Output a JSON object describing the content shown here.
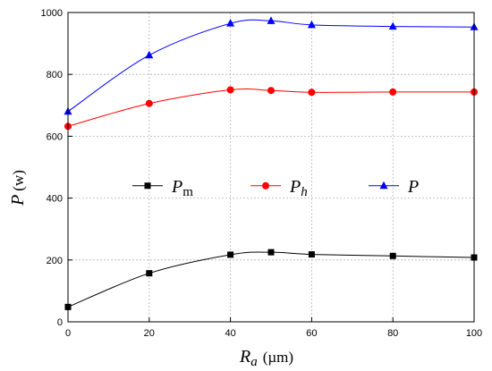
{
  "chart_data": {
    "type": "line",
    "x": [
      0,
      20,
      40,
      50,
      60,
      80,
      100
    ],
    "xlim": [
      0,
      100
    ],
    "ylim": [
      0,
      1000
    ],
    "xticks": [
      0,
      20,
      40,
      60,
      80,
      100
    ],
    "yticks": [
      0,
      200,
      400,
      600,
      800,
      1000
    ],
    "xlabel": {
      "main": "R",
      "sub": "a",
      "unit": "(µm)"
    },
    "ylabel": {
      "main": "P",
      "unit": "(w)"
    },
    "grid": true,
    "legend_position": "center",
    "series": [
      {
        "name": "P",
        "sub": "m",
        "color": "#000000",
        "marker": "square",
        "values": [
          48,
          157,
          217,
          225,
          218,
          213,
          208
        ]
      },
      {
        "name": "P",
        "sub": "h",
        "color": "#ff0000",
        "marker": "circle",
        "values": [
          632,
          706,
          750,
          748,
          742,
          743,
          743
        ]
      },
      {
        "name": "P",
        "sub": "",
        "color": "#0000ff",
        "marker": "triangle",
        "values": [
          680,
          862,
          965,
          973,
          960,
          955,
          953
        ]
      }
    ]
  }
}
